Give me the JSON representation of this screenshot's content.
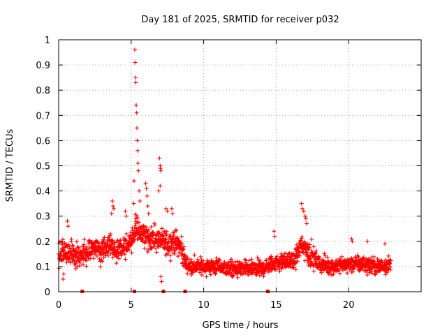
{
  "chart_data": {
    "type": "scatter",
    "title": "Day 181 of 2025, SRMTID for receiver p032",
    "xlabel": "GPS time / hours",
    "ylabel": "SRMTID / TECUs",
    "xlim": [
      0,
      25
    ],
    "ylim": [
      0,
      1
    ],
    "xticks": [
      0,
      5,
      10,
      15,
      20
    ],
    "yticks": [
      0,
      0.1,
      0.2,
      0.3,
      0.4,
      0.5,
      0.6,
      0.7,
      0.8,
      0.9,
      1
    ],
    "xtick_labels": [
      "0",
      "5",
      "10",
      "15",
      "20"
    ],
    "ytick_labels": [
      "0",
      "0.1",
      "0.2",
      "0.3",
      "0.4",
      "0.5",
      "0.6",
      "0.7",
      "0.8",
      "0.9",
      "1"
    ],
    "grid": true,
    "marker": "+",
    "color": "#ff0000",
    "series_name": "SRMTID",
    "data_span_hours": [
      0,
      22.9
    ],
    "sample_interval_hours": 0.0125,
    "trend": [
      [
        0.0,
        0.15
      ],
      [
        0.5,
        0.16
      ],
      [
        1.0,
        0.15
      ],
      [
        1.5,
        0.14
      ],
      [
        2.0,
        0.16
      ],
      [
        2.5,
        0.17
      ],
      [
        3.0,
        0.17
      ],
      [
        3.5,
        0.19
      ],
      [
        4.0,
        0.16
      ],
      [
        4.5,
        0.18
      ],
      [
        5.0,
        0.19
      ],
      [
        5.3,
        0.26
      ],
      [
        5.6,
        0.24
      ],
      [
        6.0,
        0.22
      ],
      [
        6.5,
        0.21
      ],
      [
        7.0,
        0.2
      ],
      [
        7.5,
        0.19
      ],
      [
        8.0,
        0.2
      ],
      [
        8.5,
        0.17
      ],
      [
        8.7,
        0.12
      ],
      [
        9.0,
        0.1
      ],
      [
        10.0,
        0.1
      ],
      [
        11.0,
        0.1
      ],
      [
        12.0,
        0.09
      ],
      [
        13.0,
        0.09
      ],
      [
        14.0,
        0.09
      ],
      [
        14.7,
        0.11
      ],
      [
        15.5,
        0.12
      ],
      [
        16.2,
        0.12
      ],
      [
        16.8,
        0.19
      ],
      [
        17.3,
        0.15
      ],
      [
        18.0,
        0.11
      ],
      [
        19.0,
        0.1
      ],
      [
        20.0,
        0.11
      ],
      [
        21.0,
        0.11
      ],
      [
        22.0,
        0.1
      ],
      [
        22.9,
        0.11
      ]
    ],
    "spread": 0.045,
    "spikes": [
      {
        "x": 5.25,
        "y": 0.96
      },
      {
        "x": 5.27,
        "y": 0.91
      },
      {
        "x": 5.3,
        "y": 0.85
      },
      {
        "x": 5.32,
        "y": 0.83
      },
      {
        "x": 5.35,
        "y": 0.74
      },
      {
        "x": 5.38,
        "y": 0.71
      },
      {
        "x": 5.4,
        "y": 0.65
      },
      {
        "x": 5.42,
        "y": 0.6
      },
      {
        "x": 5.45,
        "y": 0.56
      },
      {
        "x": 5.47,
        "y": 0.51
      },
      {
        "x": 5.5,
        "y": 0.48
      },
      {
        "x": 5.2,
        "y": 0.44
      },
      {
        "x": 5.55,
        "y": 0.4
      },
      {
        "x": 5.6,
        "y": 0.36
      },
      {
        "x": 5.18,
        "y": 0.35
      },
      {
        "x": 6.0,
        "y": 0.43
      },
      {
        "x": 6.05,
        "y": 0.41
      },
      {
        "x": 6.1,
        "y": 0.38
      },
      {
        "x": 6.15,
        "y": 0.34
      },
      {
        "x": 6.2,
        "y": 0.31
      },
      {
        "x": 6.95,
        "y": 0.53
      },
      {
        "x": 7.0,
        "y": 0.5
      },
      {
        "x": 7.02,
        "y": 0.49
      },
      {
        "x": 7.05,
        "y": 0.48
      },
      {
        "x": 7.0,
        "y": 0.42
      },
      {
        "x": 6.9,
        "y": 0.4
      },
      {
        "x": 3.7,
        "y": 0.36
      },
      {
        "x": 3.75,
        "y": 0.34
      },
      {
        "x": 3.8,
        "y": 0.33
      },
      {
        "x": 3.65,
        "y": 0.31
      },
      {
        "x": 4.6,
        "y": 0.32
      },
      {
        "x": 4.65,
        "y": 0.3
      },
      {
        "x": 7.4,
        "y": 0.33
      },
      {
        "x": 7.5,
        "y": 0.32
      },
      {
        "x": 7.8,
        "y": 0.33
      },
      {
        "x": 7.85,
        "y": 0.31
      },
      {
        "x": 0.6,
        "y": 0.28
      },
      {
        "x": 0.65,
        "y": 0.26
      },
      {
        "x": 16.75,
        "y": 0.35
      },
      {
        "x": 16.8,
        "y": 0.33
      },
      {
        "x": 16.9,
        "y": 0.32
      },
      {
        "x": 17.0,
        "y": 0.3
      },
      {
        "x": 17.05,
        "y": 0.29
      },
      {
        "x": 17.1,
        "y": 0.27
      },
      {
        "x": 14.85,
        "y": 0.24
      },
      {
        "x": 14.9,
        "y": 0.22
      },
      {
        "x": 20.2,
        "y": 0.21
      },
      {
        "x": 20.25,
        "y": 0.2
      },
      {
        "x": 21.3,
        "y": 0.2
      },
      {
        "x": 22.5,
        "y": 0.19
      },
      {
        "x": 7.1,
        "y": 0.04
      },
      {
        "x": 7.05,
        "y": 0.06
      },
      {
        "x": 0.3,
        "y": 0.05
      },
      {
        "x": 0.35,
        "y": 0.07
      }
    ],
    "gap_markers": [
      1.6,
      5.2,
      7.2,
      8.7,
      14.4
    ]
  }
}
